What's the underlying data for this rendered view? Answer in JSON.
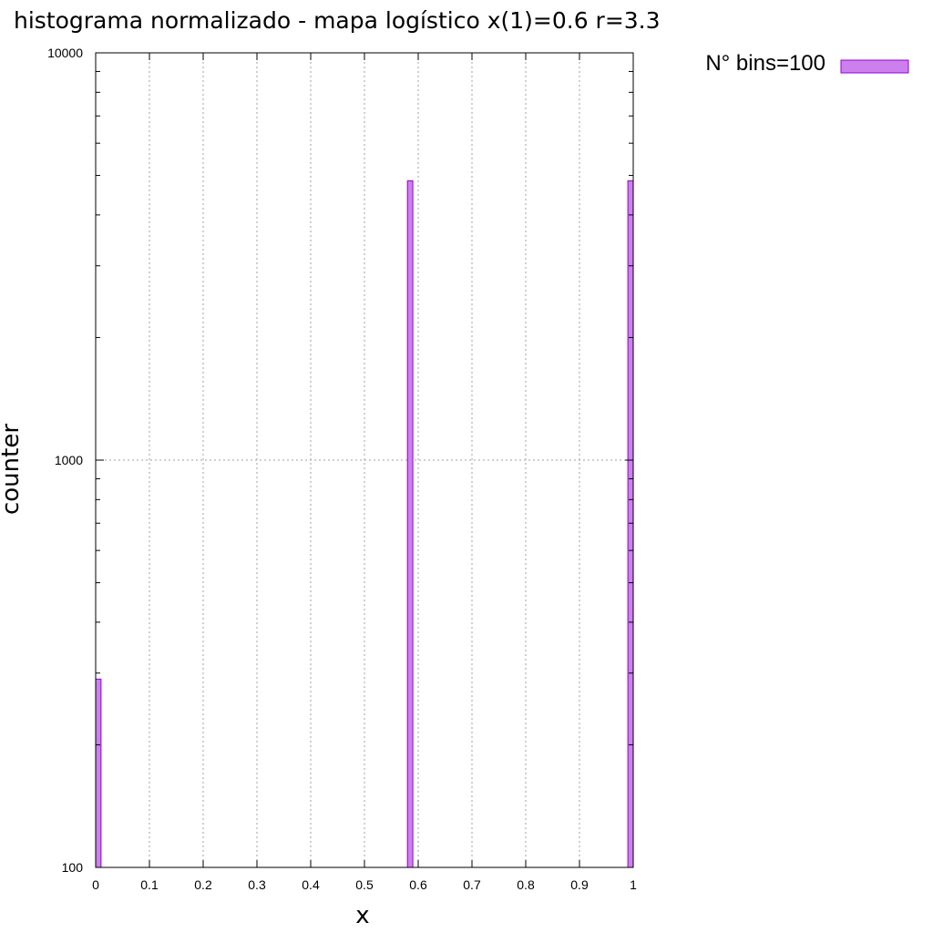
{
  "chart_data": {
    "type": "bar",
    "title": "histograma normalizado - mapa logístico x(1)=0.6   r=3.3",
    "xlabel": "x",
    "ylabel": "counter",
    "xlim": [
      0,
      1
    ],
    "ylim": [
      100,
      10000
    ],
    "yscale": "log",
    "grid": true,
    "legend_position": "top-right, outside plot",
    "x_ticks": [
      "0",
      "0.1",
      "0.2",
      "0.3",
      "0.4",
      "0.5",
      "0.6",
      "0.7",
      "0.8",
      "0.9",
      "1"
    ],
    "y_ticks": [
      "100",
      "1000",
      "10000"
    ],
    "bin_width": 0.01,
    "series": [
      {
        "name": "N° bins=100",
        "color": "#cc80ee",
        "edge_color": "#9400d3",
        "bins": [
          {
            "x": 0.0,
            "value": 290
          },
          {
            "x": 0.58,
            "value": 4850
          },
          {
            "x": 0.99,
            "value": 4850
          }
        ]
      }
    ]
  }
}
